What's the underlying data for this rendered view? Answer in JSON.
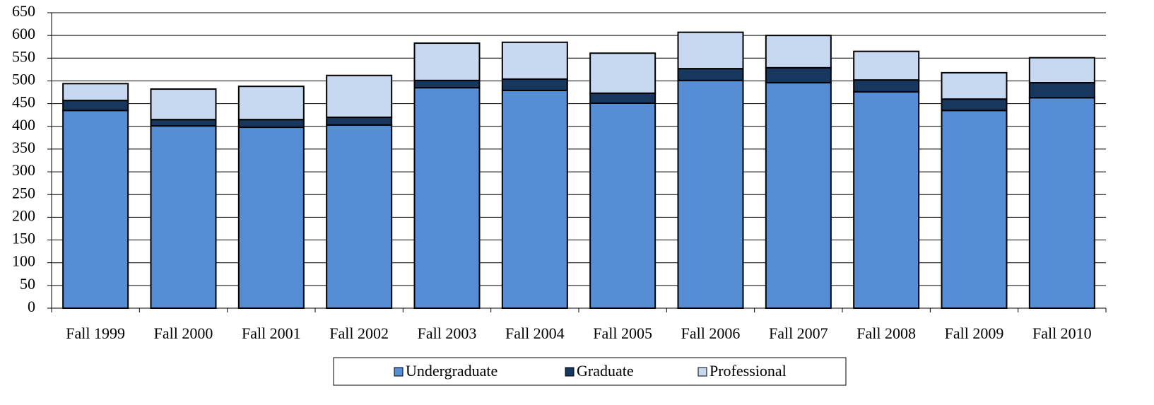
{
  "chart_data": {
    "type": "stacked_bar",
    "categories": [
      "Fall 1999",
      "Fall 2000",
      "Fall 2001",
      "Fall 2002",
      "Fall 2003",
      "Fall 2004",
      "Fall 2005",
      "Fall 2006",
      "Fall 2007",
      "Fall 2008",
      "Fall 2009",
      "Fall 2010"
    ],
    "series": [
      {
        "name": "Undergraduate",
        "color": "#558ed5",
        "values": [
          435,
          401,
          398,
          403,
          485,
          479,
          451,
          501,
          496,
          476,
          435,
          463
        ]
      },
      {
        "name": "Graduate",
        "color": "#17375e",
        "values": [
          22,
          14,
          17,
          17,
          16,
          25,
          22,
          26,
          33,
          26,
          25,
          33
        ]
      },
      {
        "name": "Professional",
        "color": "#c6d9f1",
        "values": [
          37,
          67,
          73,
          92,
          82,
          81,
          88,
          80,
          71,
          63,
          58,
          55
        ]
      }
    ],
    "ylim": [
      0,
      650
    ],
    "yticks": [
      0,
      50,
      100,
      150,
      200,
      250,
      300,
      350,
      400,
      450,
      500,
      550,
      600,
      650
    ],
    "grid": true,
    "legend": "bottom"
  }
}
